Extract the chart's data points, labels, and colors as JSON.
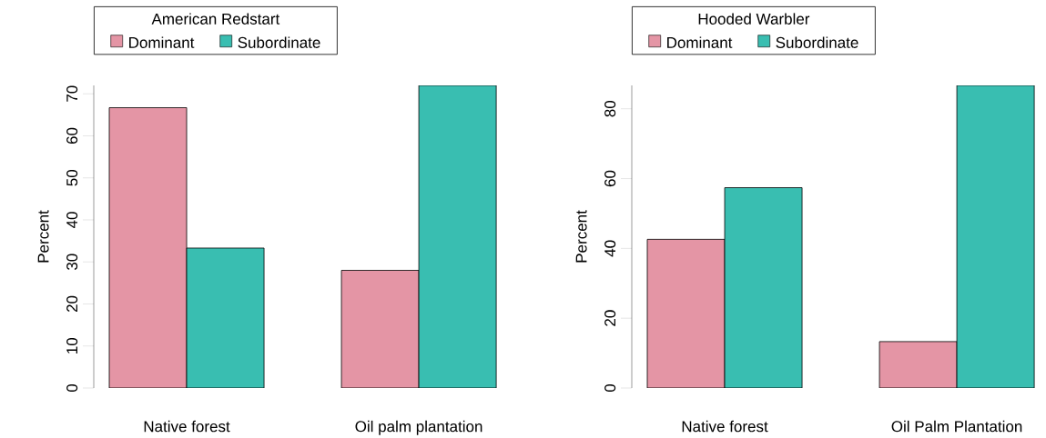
{
  "chart_data": [
    {
      "type": "bar",
      "legend_title": "American Redstart",
      "categories": [
        "Native forest",
        "Oil palm plantation"
      ],
      "ylabel": "Percent",
      "ylim": [
        0,
        72
      ],
      "yticks": [
        0,
        10,
        20,
        30,
        40,
        50,
        60,
        70
      ],
      "legend": "top",
      "series": [
        {
          "name": "Dominant",
          "color": "#e495a5",
          "values": [
            66.7,
            28.0
          ]
        },
        {
          "name": "Subordinate",
          "color": "#39beb1",
          "values": [
            33.3,
            72.0
          ]
        }
      ]
    },
    {
      "type": "bar",
      "legend_title": "Hooded Warbler",
      "categories": [
        "Native forest",
        "Oil Palm Plantation"
      ],
      "ylabel": "Percent",
      "ylim": [
        0,
        86.7
      ],
      "yticks": [
        0,
        20,
        40,
        60,
        80
      ],
      "legend": "top",
      "series": [
        {
          "name": "Dominant",
          "color": "#e495a5",
          "values": [
            42.6,
            13.3
          ]
        },
        {
          "name": "Subordinate",
          "color": "#39beb1",
          "values": [
            57.4,
            86.7
          ]
        }
      ]
    }
  ]
}
